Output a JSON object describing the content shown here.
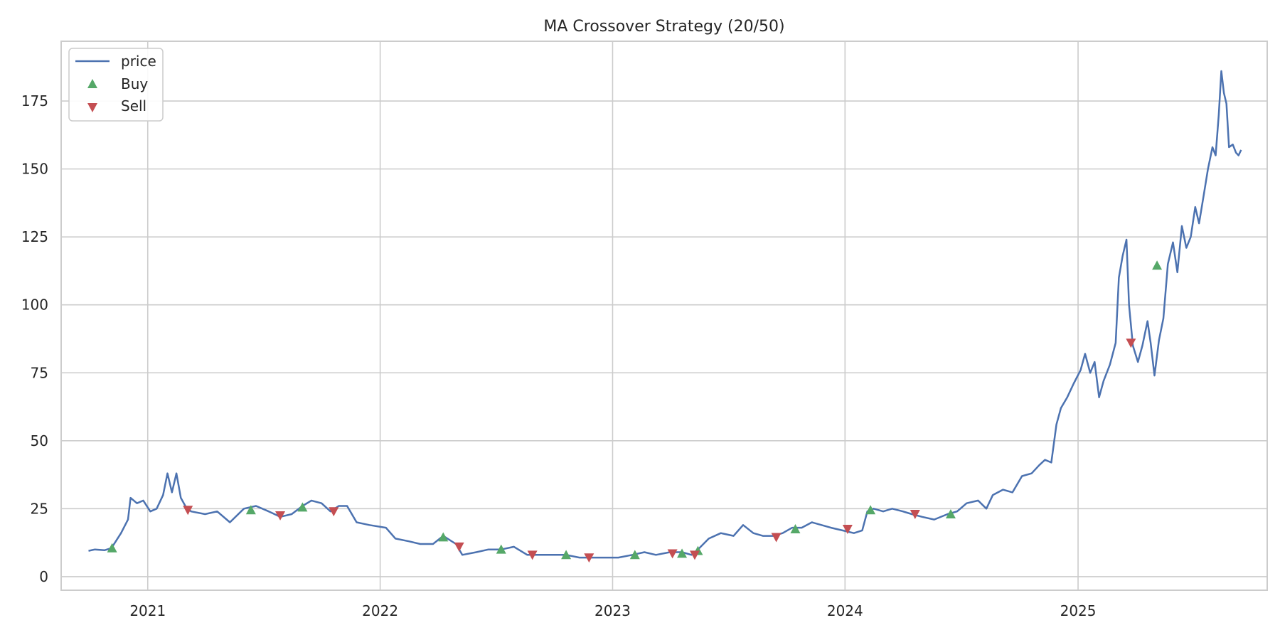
{
  "chart_data": {
    "type": "line",
    "title": "MA Crossover Strategy (20/50)",
    "xlabel": "",
    "ylabel": "",
    "xlim": [
      "2020-08-18",
      "2025-10-25"
    ],
    "ylim": [
      -5,
      197
    ],
    "x_ticks": [
      "2021",
      "2022",
      "2023",
      "2024",
      "2025"
    ],
    "y_ticks": [
      0,
      25,
      50,
      75,
      100,
      125,
      150,
      175
    ],
    "grid": true,
    "legend": "top-left",
    "colors": {
      "price": "#4c72b0",
      "buy": "#55a868",
      "sell": "#c44e52"
    },
    "series": [
      {
        "name": "price",
        "kind": "line",
        "points": [
          [
            "2020-09-30",
            9.5
          ],
          [
            "2020-10-10",
            10
          ],
          [
            "2020-10-25",
            9.7
          ],
          [
            "2020-11-05",
            10.5
          ],
          [
            "2020-11-20",
            16
          ],
          [
            "2020-12-01",
            21
          ],
          [
            "2020-12-05",
            29
          ],
          [
            "2020-12-15",
            27
          ],
          [
            "2020-12-25",
            28
          ],
          [
            "2021-01-05",
            24
          ],
          [
            "2021-01-15",
            25
          ],
          [
            "2021-01-25",
            30
          ],
          [
            "2021-02-01",
            38
          ],
          [
            "2021-02-08",
            31
          ],
          [
            "2021-02-15",
            38
          ],
          [
            "2021-02-22",
            29
          ],
          [
            "2021-03-01",
            26
          ],
          [
            "2021-03-10",
            24
          ],
          [
            "2021-04-01",
            23
          ],
          [
            "2021-04-20",
            24
          ],
          [
            "2021-05-10",
            20
          ],
          [
            "2021-06-01",
            25
          ],
          [
            "2021-06-20",
            26
          ],
          [
            "2021-07-10",
            24
          ],
          [
            "2021-07-28",
            22
          ],
          [
            "2021-08-15",
            23
          ],
          [
            "2021-09-01",
            26
          ],
          [
            "2021-09-15",
            28
          ],
          [
            "2021-10-01",
            27
          ],
          [
            "2021-10-15",
            24
          ],
          [
            "2021-10-28",
            26
          ],
          [
            "2021-11-10",
            26
          ],
          [
            "2021-11-25",
            20
          ],
          [
            "2021-12-15",
            19
          ],
          [
            "2022-01-10",
            18
          ],
          [
            "2022-01-25",
            14
          ],
          [
            "2022-02-15",
            13
          ],
          [
            "2022-03-05",
            12
          ],
          [
            "2022-03-25",
            12
          ],
          [
            "2022-04-10",
            15
          ],
          [
            "2022-04-30",
            12
          ],
          [
            "2022-05-10",
            8
          ],
          [
            "2022-06-01",
            9
          ],
          [
            "2022-06-20",
            10
          ],
          [
            "2022-07-10",
            10
          ],
          [
            "2022-07-30",
            11
          ],
          [
            "2022-08-20",
            8
          ],
          [
            "2022-09-10",
            8
          ],
          [
            "2022-10-01",
            8
          ],
          [
            "2022-10-20",
            8
          ],
          [
            "2022-11-10",
            7
          ],
          [
            "2022-11-28",
            7
          ],
          [
            "2022-12-20",
            7
          ],
          [
            "2023-01-10",
            7
          ],
          [
            "2023-02-01",
            8
          ],
          [
            "2023-02-20",
            9
          ],
          [
            "2023-03-10",
            8
          ],
          [
            "2023-04-01",
            9
          ],
          [
            "2023-04-20",
            9
          ],
          [
            "2023-05-05",
            8
          ],
          [
            "2023-05-15",
            10
          ],
          [
            "2023-06-01",
            14
          ],
          [
            "2023-06-20",
            16
          ],
          [
            "2023-07-10",
            15
          ],
          [
            "2023-07-25",
            19
          ],
          [
            "2023-08-10",
            16
          ],
          [
            "2023-08-25",
            15
          ],
          [
            "2023-09-10",
            15
          ],
          [
            "2023-09-25",
            16
          ],
          [
            "2023-10-10",
            18
          ],
          [
            "2023-10-25",
            18
          ],
          [
            "2023-11-10",
            20
          ],
          [
            "2023-11-25",
            19
          ],
          [
            "2023-12-10",
            18
          ],
          [
            "2023-12-28",
            17
          ],
          [
            "2024-01-15",
            16
          ],
          [
            "2024-01-28",
            17
          ],
          [
            "2024-02-05",
            24
          ],
          [
            "2024-02-15",
            25
          ],
          [
            "2024-03-01",
            24
          ],
          [
            "2024-03-15",
            25
          ],
          [
            "2024-04-01",
            24
          ],
          [
            "2024-04-15",
            23
          ],
          [
            "2024-05-01",
            22
          ],
          [
            "2024-05-20",
            21
          ],
          [
            "2024-06-10",
            23
          ],
          [
            "2024-06-25",
            24
          ],
          [
            "2024-07-10",
            27
          ],
          [
            "2024-07-28",
            28
          ],
          [
            "2024-08-10",
            25
          ],
          [
            "2024-08-20",
            30
          ],
          [
            "2024-09-05",
            32
          ],
          [
            "2024-09-20",
            31
          ],
          [
            "2024-10-05",
            37
          ],
          [
            "2024-10-20",
            38
          ],
          [
            "2024-11-01",
            41
          ],
          [
            "2024-11-10",
            43
          ],
          [
            "2024-11-20",
            42
          ],
          [
            "2024-11-28",
            56
          ],
          [
            "2024-12-05",
            62
          ],
          [
            "2024-12-15",
            66
          ],
          [
            "2024-12-25",
            71
          ],
          [
            "2025-01-05",
            76
          ],
          [
            "2025-01-12",
            82
          ],
          [
            "2025-01-20",
            75
          ],
          [
            "2025-01-27",
            79
          ],
          [
            "2025-02-03",
            66
          ],
          [
            "2025-02-10",
            72
          ],
          [
            "2025-02-20",
            78
          ],
          [
            "2025-03-01",
            86
          ],
          [
            "2025-03-06",
            110
          ],
          [
            "2025-03-12",
            118
          ],
          [
            "2025-03-18",
            124
          ],
          [
            "2025-03-22",
            100
          ],
          [
            "2025-03-28",
            85
          ],
          [
            "2025-04-05",
            79
          ],
          [
            "2025-04-12",
            85
          ],
          [
            "2025-04-20",
            94
          ],
          [
            "2025-04-25",
            86
          ],
          [
            "2025-05-01",
            74
          ],
          [
            "2025-05-08",
            87
          ],
          [
            "2025-05-15",
            95
          ],
          [
            "2025-05-22",
            115
          ],
          [
            "2025-05-30",
            123
          ],
          [
            "2025-06-06",
            112
          ],
          [
            "2025-06-13",
            129
          ],
          [
            "2025-06-20",
            121
          ],
          [
            "2025-06-27",
            125
          ],
          [
            "2025-07-04",
            136
          ],
          [
            "2025-07-10",
            130
          ],
          [
            "2025-07-17",
            140
          ],
          [
            "2025-07-24",
            150
          ],
          [
            "2025-07-31",
            158
          ],
          [
            "2025-08-05",
            155
          ],
          [
            "2025-08-10",
            170
          ],
          [
            "2025-08-14",
            186
          ],
          [
            "2025-08-18",
            178
          ],
          [
            "2025-08-22",
            174
          ],
          [
            "2025-08-26",
            158
          ],
          [
            "2025-09-01",
            159
          ],
          [
            "2025-09-06",
            156
          ],
          [
            "2025-09-10",
            155
          ],
          [
            "2025-09-14",
            157
          ]
        ]
      },
      {
        "name": "Buy",
        "kind": "marker-up",
        "points": [
          [
            "2020-11-06",
            10.5
          ],
          [
            "2021-06-12",
            24.5
          ],
          [
            "2021-09-01",
            25.5
          ],
          [
            "2022-04-10",
            14.5
          ],
          [
            "2022-07-10",
            10
          ],
          [
            "2022-10-20",
            8
          ],
          [
            "2023-02-05",
            8
          ],
          [
            "2023-04-20",
            8.5
          ],
          [
            "2023-05-15",
            9.5
          ],
          [
            "2023-10-15",
            17.5
          ],
          [
            "2024-02-10",
            24.5
          ],
          [
            "2024-06-15",
            23
          ],
          [
            "2025-05-05",
            114.5
          ]
        ]
      },
      {
        "name": "Sell",
        "kind": "marker-down",
        "points": [
          [
            "2021-03-05",
            24.5
          ],
          [
            "2021-07-28",
            22.5
          ],
          [
            "2021-10-20",
            24
          ],
          [
            "2022-05-05",
            11
          ],
          [
            "2022-08-28",
            8
          ],
          [
            "2022-11-25",
            7
          ],
          [
            "2023-04-05",
            8.5
          ],
          [
            "2023-05-10",
            8
          ],
          [
            "2023-09-15",
            14.5
          ],
          [
            "2024-01-05",
            17.5
          ],
          [
            "2024-04-20",
            23
          ],
          [
            "2025-03-25",
            86
          ]
        ]
      }
    ]
  }
}
